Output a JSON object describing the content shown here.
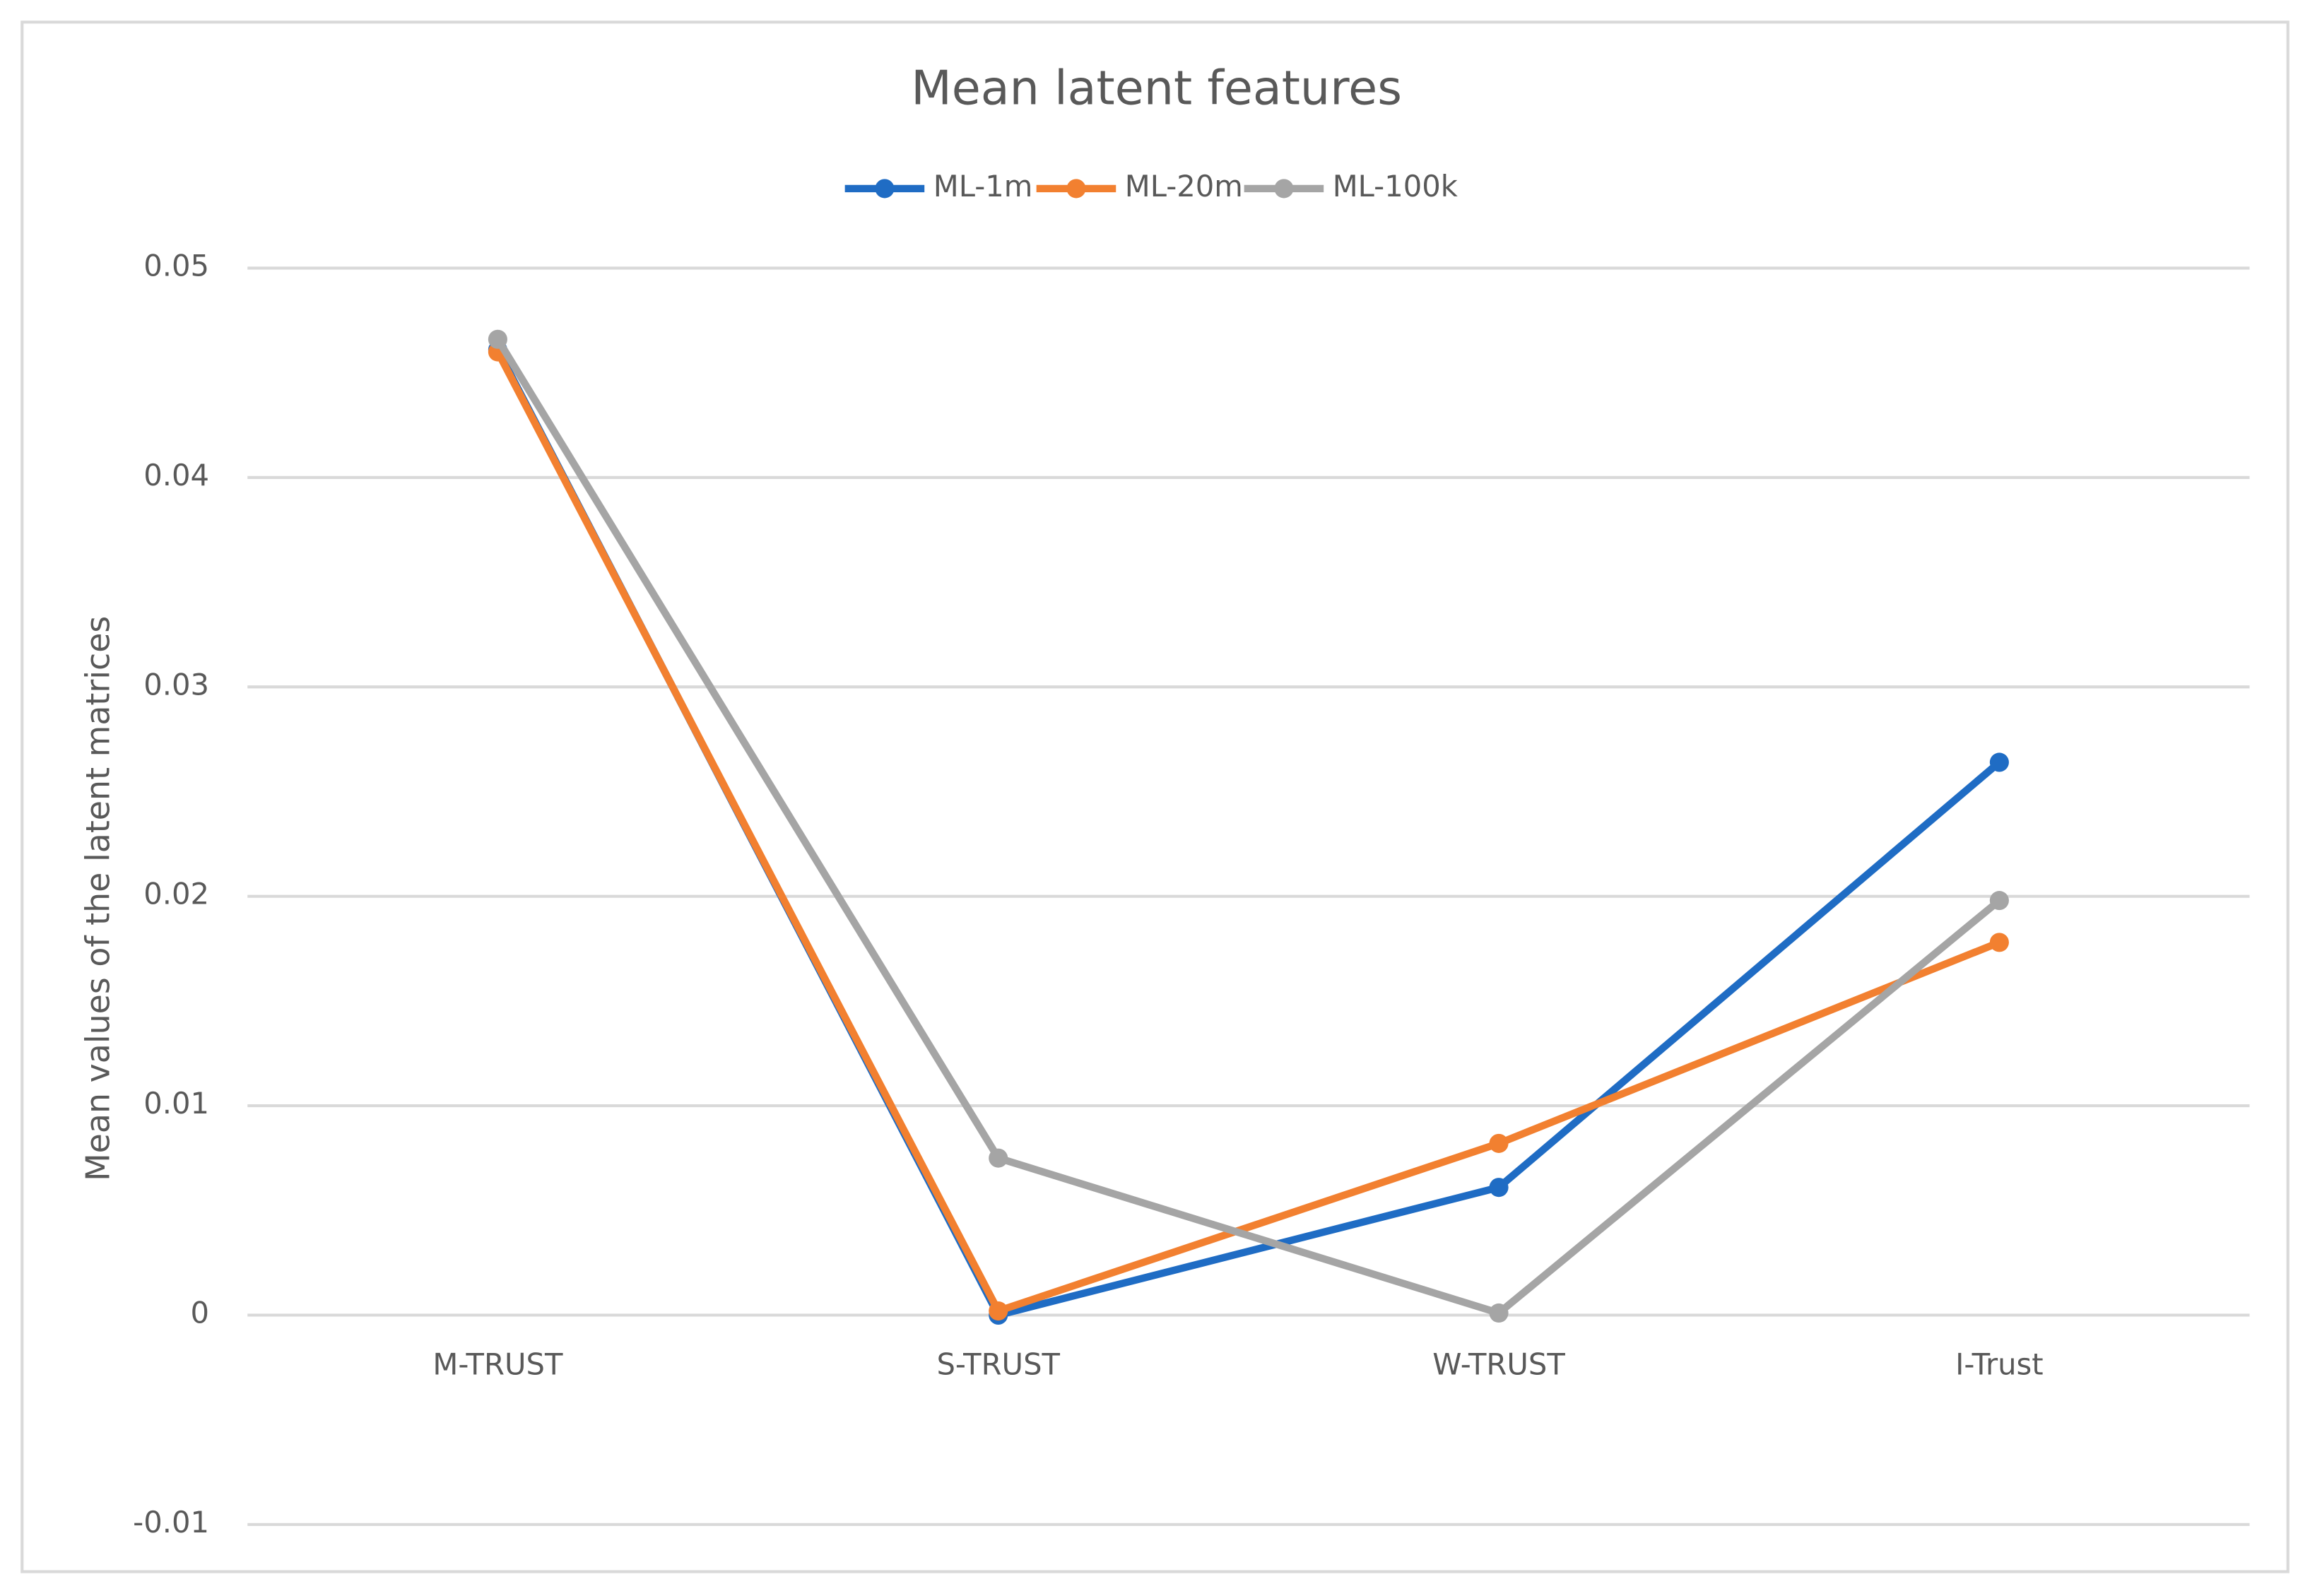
{
  "chart_data": {
    "type": "line",
    "title": "Mean latent features",
    "y_label": "Mean values of the latent  matrices",
    "categories": [
      "M-TRUST",
      "S-TRUST",
      "W-TRUST",
      "I-Trust"
    ],
    "series": [
      {
        "name": "ML-1m",
        "color": "#1f6cc4",
        "values": [
          0.0461,
          0.0,
          0.0061,
          0.0264
        ]
      },
      {
        "name": "ML-20m",
        "color": "#f28030",
        "values": [
          0.046,
          0.0002,
          0.0082,
          0.0178
        ]
      },
      {
        "name": "ML-100k",
        "color": "#a5a5a5",
        "values": [
          0.0466,
          0.0075,
          0.0001,
          0.0198
        ]
      }
    ],
    "ylim": [
      -0.01,
      0.05
    ],
    "yticks": [
      -0.01,
      0,
      0.01,
      0.02,
      0.03,
      0.04,
      0.05
    ],
    "grid": true,
    "legend": "top"
  }
}
